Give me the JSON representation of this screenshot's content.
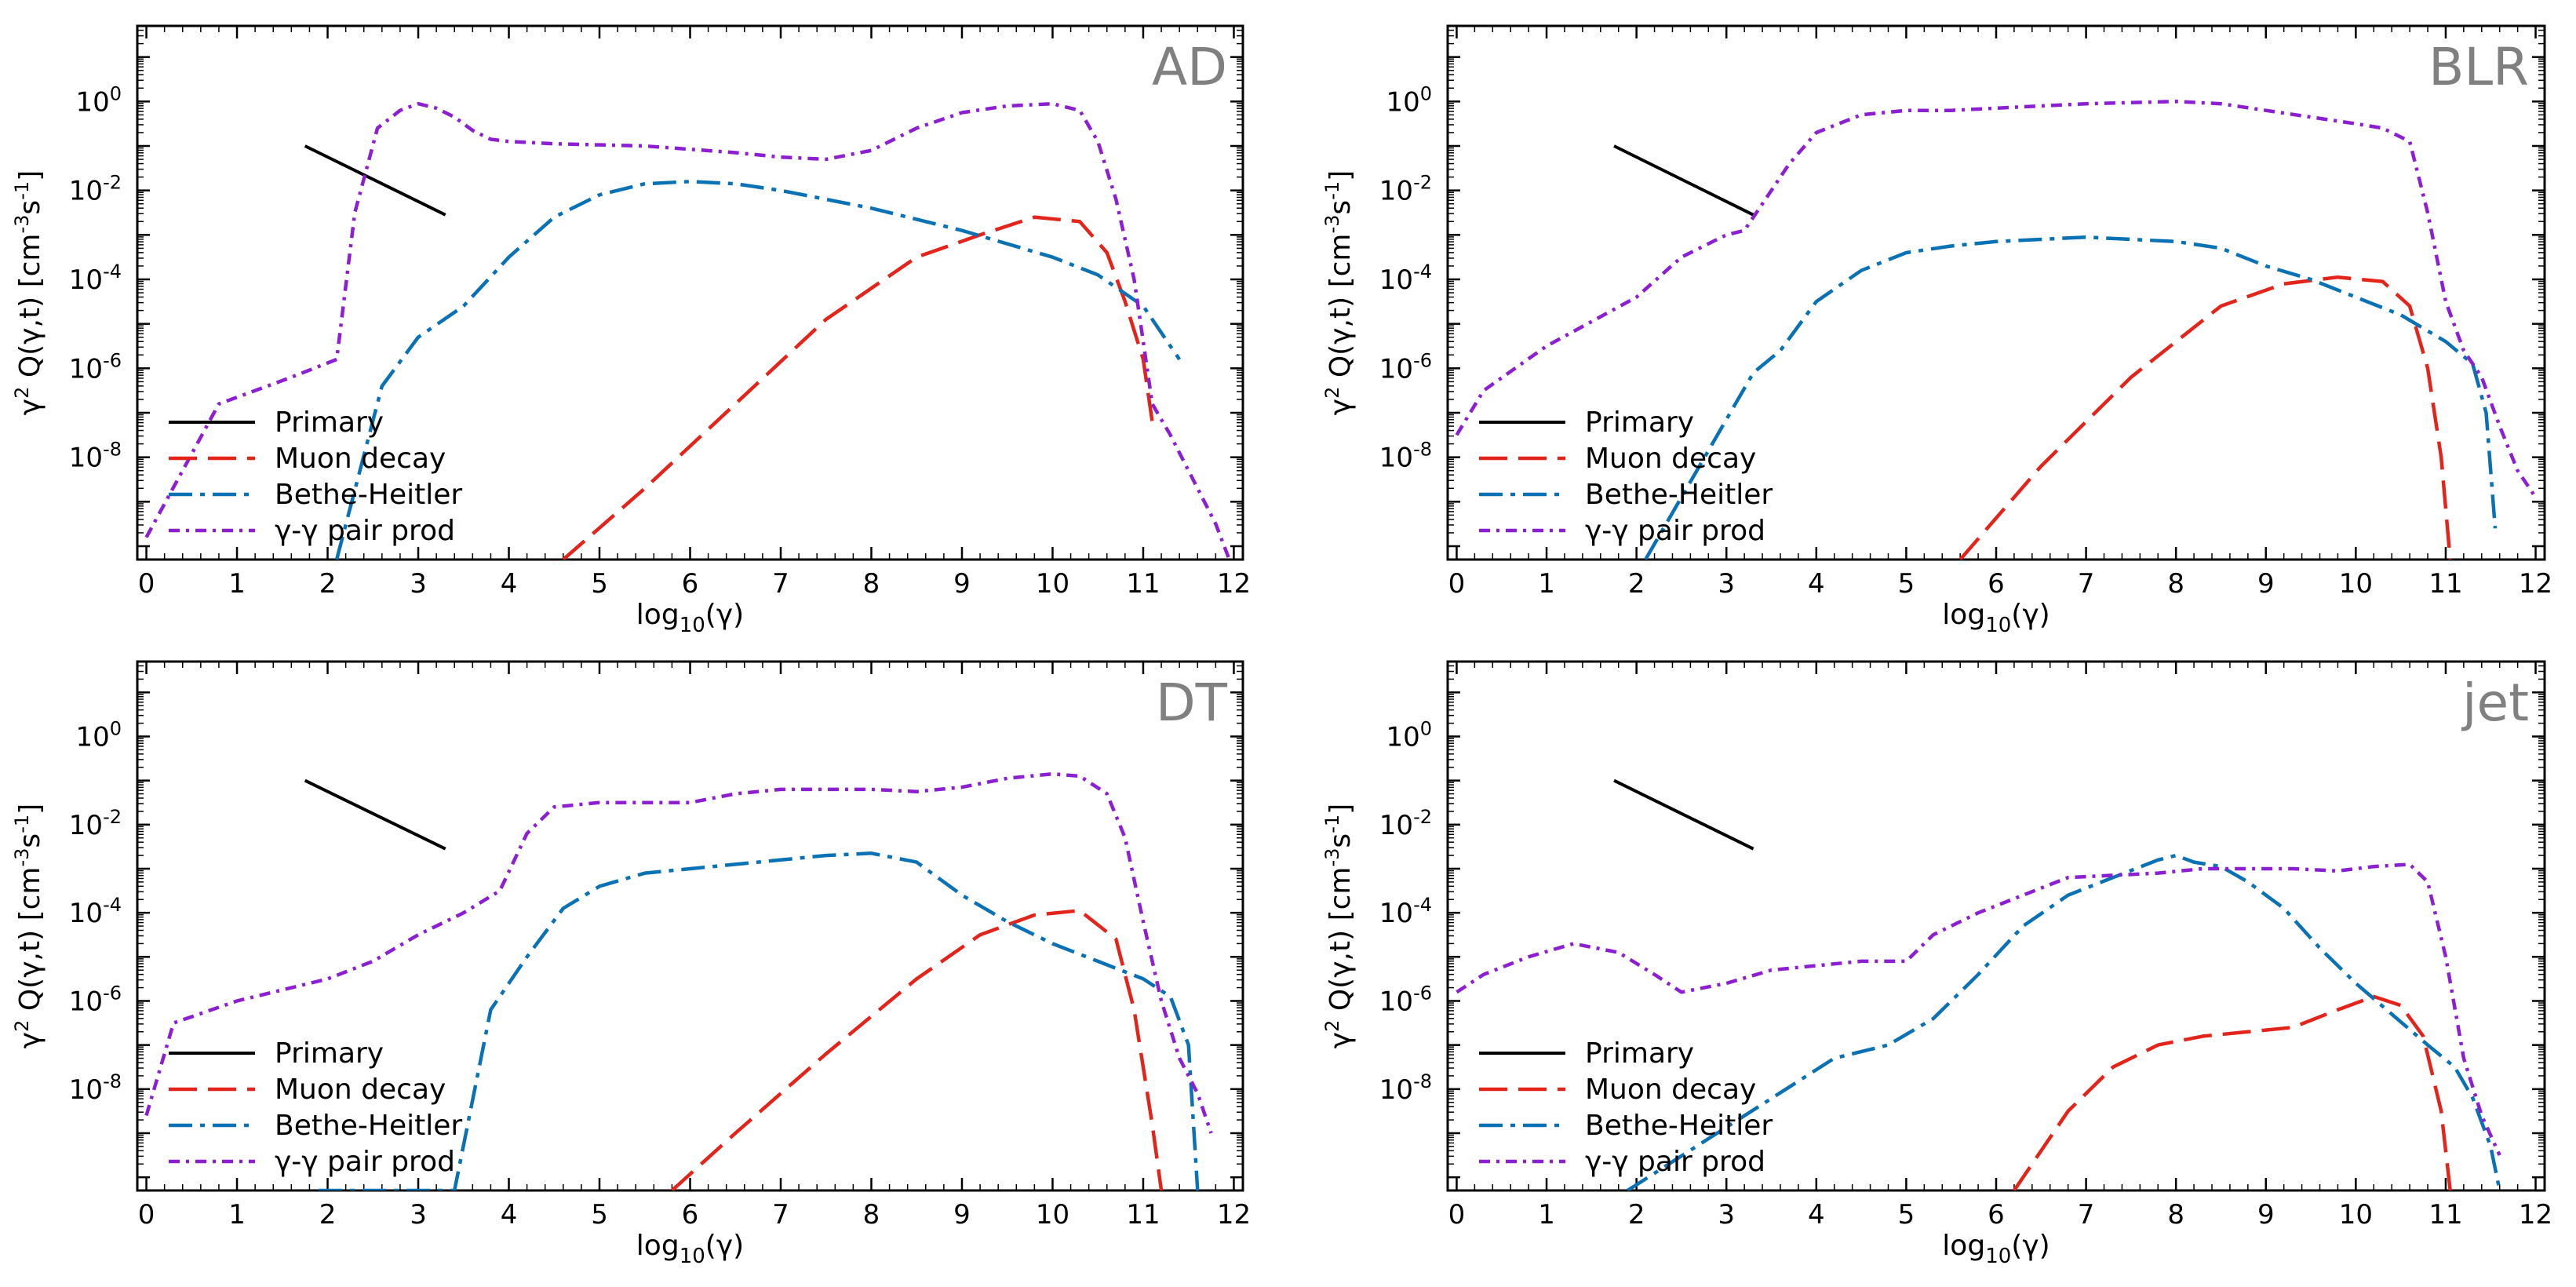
{
  "figure": {
    "xlabel_base": "log",
    "xlabel_sub": "10",
    "xlabel_arg": "(γ)",
    "ylabel_parts": [
      "γ",
      "2",
      " Q(γ,t) [cm",
      "-3",
      "s",
      "-1",
      "]"
    ]
  },
  "colors": {
    "primary": "#000000",
    "muon": "#e3241b",
    "bethe": "#0a72b4",
    "pair": "#8c1fd1",
    "title": "#808080"
  },
  "legend_labels": [
    "Primary",
    "Muon decay",
    "Bethe-Heitler",
    "γ-γ pair prod"
  ],
  "chart_data": [
    {
      "type": "line",
      "title": "AD",
      "xlim": [
        -0.1,
        12.1
      ],
      "ylim_log10": [
        -10.3,
        1.7
      ],
      "y_scale": "log",
      "xticks": [
        "0",
        "1",
        "2",
        "3",
        "4",
        "5",
        "6",
        "7",
        "8",
        "9",
        "10",
        "11",
        "12"
      ],
      "yticks": [
        {
          "exp": 0,
          "label": "10",
          "sup": "0"
        },
        {
          "exp": -2,
          "label": "10",
          "sup": "-2"
        },
        {
          "exp": -4,
          "label": "10",
          "sup": "-4"
        },
        {
          "exp": -6,
          "label": "10",
          "sup": "-6"
        },
        {
          "exp": -8,
          "label": "10",
          "sup": "-8"
        }
      ],
      "series": [
        {
          "name": "Primary",
          "x": [
            1.75,
            3.3
          ],
          "log10y": [
            -1.0,
            -2.55
          ]
        },
        {
          "name": "Muon decay",
          "x": [
            4.6,
            5.5,
            6.5,
            7.5,
            8.5,
            9.2,
            9.8,
            10.3,
            10.6,
            10.8,
            11.0,
            11.1
          ],
          "log10y": [
            -10.3,
            -8.7,
            -6.8,
            -4.9,
            -3.5,
            -3.0,
            -2.6,
            -2.7,
            -3.4,
            -4.5,
            -5.8,
            -7.2
          ]
        },
        {
          "name": "Bethe-Heitler",
          "x": [
            2.1,
            2.6,
            3.0,
            3.5,
            4.0,
            4.5,
            5.0,
            5.5,
            6.0,
            6.5,
            7.0,
            8.0,
            9.0,
            10.0,
            10.5,
            11.0,
            11.3,
            11.4
          ],
          "log10y": [
            -10.3,
            -6.4,
            -5.3,
            -4.6,
            -3.5,
            -2.6,
            -2.1,
            -1.85,
            -1.8,
            -1.85,
            -2.0,
            -2.4,
            -2.9,
            -3.5,
            -3.9,
            -4.6,
            -5.5,
            -5.8
          ]
        },
        {
          "name": "γ-γ pair prod",
          "x": [
            0.0,
            0.8,
            1.6,
            2.1,
            2.3,
            2.55,
            2.8,
            3.0,
            3.2,
            3.4,
            3.6,
            3.8,
            4.0,
            4.5,
            5.5,
            6.5,
            7.0,
            7.5,
            8.0,
            8.5,
            9.0,
            9.5,
            10.0,
            10.3,
            10.5,
            10.7,
            10.9,
            11.0,
            11.1,
            11.3,
            11.5,
            11.8,
            11.95
          ],
          "log10y": [
            -9.8,
            -6.8,
            -6.2,
            -5.8,
            -2.5,
            -0.6,
            -0.2,
            -0.05,
            -0.15,
            -0.35,
            -0.65,
            -0.85,
            -0.9,
            -0.95,
            -1.0,
            -1.15,
            -1.25,
            -1.3,
            -1.1,
            -0.6,
            -0.25,
            -0.1,
            -0.05,
            -0.2,
            -0.9,
            -2.2,
            -4.0,
            -5.4,
            -6.8,
            -7.5,
            -8.3,
            -9.5,
            -10.3
          ]
        }
      ]
    },
    {
      "type": "line",
      "title": "BLR",
      "xlim": [
        -0.1,
        12.1
      ],
      "ylim_log10": [
        -10.3,
        1.7
      ],
      "y_scale": "log",
      "xticks": [
        "0",
        "1",
        "2",
        "3",
        "4",
        "5",
        "6",
        "7",
        "8",
        "9",
        "10",
        "11",
        "12"
      ],
      "yticks": [
        {
          "exp": 0,
          "label": "10",
          "sup": "0"
        },
        {
          "exp": -2,
          "label": "10",
          "sup": "-2"
        },
        {
          "exp": -4,
          "label": "10",
          "sup": "-4"
        },
        {
          "exp": -6,
          "label": "10",
          "sup": "-6"
        },
        {
          "exp": -8,
          "label": "10",
          "sup": "-8"
        }
      ],
      "series": [
        {
          "name": "Primary",
          "x": [
            1.75,
            3.3
          ],
          "log10y": [
            -1.0,
            -2.55
          ]
        },
        {
          "name": "Muon decay",
          "x": [
            5.6,
            6.5,
            7.5,
            8.5,
            9.2,
            9.8,
            10.3,
            10.6,
            10.8,
            10.95,
            11.05
          ],
          "log10y": [
            -10.3,
            -8.2,
            -6.2,
            -4.6,
            -4.1,
            -3.95,
            -4.05,
            -4.6,
            -6.0,
            -8.0,
            -10.3
          ]
        },
        {
          "name": "Bethe-Heitler",
          "x": [
            2.1,
            3.3,
            3.6,
            4.0,
            4.5,
            5.0,
            5.5,
            6.0,
            6.5,
            7.0,
            7.5,
            8.0,
            8.5,
            9.0,
            9.5,
            10.0,
            10.5,
            11.0,
            11.3,
            11.45,
            11.55
          ],
          "log10y": [
            -10.3,
            -6.1,
            -5.6,
            -4.5,
            -3.8,
            -3.4,
            -3.25,
            -3.15,
            -3.1,
            -3.05,
            -3.1,
            -3.15,
            -3.3,
            -3.7,
            -4.0,
            -4.4,
            -4.8,
            -5.4,
            -5.9,
            -7.0,
            -9.6
          ]
        },
        {
          "name": "γ-γ pair prod",
          "x": [
            0.0,
            0.3,
            1.0,
            2.0,
            2.5,
            3.0,
            3.2,
            3.4,
            3.7,
            4.0,
            4.5,
            5.0,
            5.5,
            6.0,
            7.0,
            8.0,
            8.5,
            9.0,
            9.5,
            10.0,
            10.3,
            10.6,
            10.8,
            11.0,
            11.2,
            11.4,
            11.6,
            11.8,
            12.0
          ],
          "log10y": [
            -7.5,
            -6.5,
            -5.5,
            -4.4,
            -3.5,
            -3.0,
            -2.9,
            -2.3,
            -1.4,
            -0.7,
            -0.3,
            -0.2,
            -0.2,
            -0.15,
            -0.05,
            0.0,
            -0.05,
            -0.2,
            -0.35,
            -0.5,
            -0.6,
            -0.9,
            -2.5,
            -4.5,
            -5.6,
            -6.2,
            -7.3,
            -8.3,
            -8.9
          ]
        }
      ]
    },
    {
      "type": "line",
      "title": "DT",
      "xlim": [
        -0.1,
        12.1
      ],
      "ylim_log10": [
        -10.3,
        1.7
      ],
      "y_scale": "log",
      "xticks": [
        "0",
        "1",
        "2",
        "3",
        "4",
        "5",
        "6",
        "7",
        "8",
        "9",
        "10",
        "11",
        "12"
      ],
      "yticks": [
        {
          "exp": 0,
          "label": "10",
          "sup": "0"
        },
        {
          "exp": -2,
          "label": "10",
          "sup": "-2"
        },
        {
          "exp": -4,
          "label": "10",
          "sup": "-4"
        },
        {
          "exp": -6,
          "label": "10",
          "sup": "-6"
        },
        {
          "exp": -8,
          "label": "10",
          "sup": "-8"
        }
      ],
      "series": [
        {
          "name": "Primary",
          "x": [
            1.75,
            3.3
          ],
          "log10y": [
            -1.0,
            -2.55
          ]
        },
        {
          "name": "Muon decay",
          "x": [
            5.8,
            6.5,
            7.5,
            8.5,
            9.2,
            9.8,
            10.3,
            10.7,
            10.9,
            11.1,
            11.2
          ],
          "log10y": [
            -10.3,
            -9.0,
            -7.2,
            -5.5,
            -4.5,
            -4.05,
            -3.95,
            -4.6,
            -6.2,
            -8.8,
            -10.3
          ]
        },
        {
          "name": "Bethe-Heitler",
          "x": [
            1.9,
            2.5,
            3.0,
            3.4,
            3.8,
            4.2,
            4.6,
            5.0,
            5.5,
            6.0,
            6.5,
            7.0,
            7.5,
            8.0,
            8.5,
            9.0,
            9.5,
            10.0,
            10.5,
            11.0,
            11.3,
            11.5,
            11.6
          ],
          "log10y": [
            -10.3,
            -10.3,
            -10.3,
            -10.3,
            -6.2,
            -5.0,
            -3.9,
            -3.4,
            -3.1,
            -3.0,
            -2.9,
            -2.8,
            -2.7,
            -2.65,
            -2.85,
            -3.6,
            -4.2,
            -4.7,
            -5.1,
            -5.5,
            -5.9,
            -7.0,
            -10.3
          ]
        },
        {
          "name": "γ-γ pair prod",
          "x": [
            0.0,
            0.3,
            1.0,
            2.0,
            2.5,
            3.0,
            3.5,
            3.9,
            4.2,
            4.5,
            5.0,
            5.5,
            6.0,
            6.5,
            7.0,
            7.5,
            8.0,
            8.5,
            9.0,
            9.5,
            10.0,
            10.3,
            10.6,
            10.8,
            11.0,
            11.2,
            11.4,
            11.6,
            11.75
          ],
          "log10y": [
            -8.6,
            -6.5,
            -6.0,
            -5.5,
            -5.1,
            -4.5,
            -4.0,
            -3.5,
            -2.2,
            -1.6,
            -1.5,
            -1.5,
            -1.5,
            -1.3,
            -1.2,
            -1.2,
            -1.2,
            -1.25,
            -1.15,
            -0.95,
            -0.85,
            -0.9,
            -1.3,
            -2.3,
            -4.2,
            -6.0,
            -7.3,
            -8.1,
            -9.0
          ]
        }
      ]
    },
    {
      "type": "line",
      "title": "jet",
      "xlim": [
        -0.1,
        12.1
      ],
      "ylim_log10": [
        -10.3,
        1.7
      ],
      "y_scale": "log",
      "xticks": [
        "0",
        "1",
        "2",
        "3",
        "4",
        "5",
        "6",
        "7",
        "8",
        "9",
        "10",
        "11",
        "12"
      ],
      "yticks": [
        {
          "exp": 0,
          "label": "10",
          "sup": "0"
        },
        {
          "exp": -2,
          "label": "10",
          "sup": "-2"
        },
        {
          "exp": -4,
          "label": "10",
          "sup": "-4"
        },
        {
          "exp": -6,
          "label": "10",
          "sup": "-6"
        },
        {
          "exp": -8,
          "label": "10",
          "sup": "-8"
        }
      ],
      "series": [
        {
          "name": "Primary",
          "x": [
            1.75,
            3.3
          ],
          "log10y": [
            -1.0,
            -2.55
          ]
        },
        {
          "name": "Muon decay",
          "x": [
            6.2,
            6.8,
            7.3,
            7.8,
            8.3,
            8.8,
            9.3,
            9.8,
            10.2,
            10.5,
            10.75,
            10.95,
            11.05
          ],
          "log10y": [
            -10.3,
            -8.5,
            -7.5,
            -7.0,
            -6.8,
            -6.7,
            -6.6,
            -6.2,
            -5.9,
            -6.1,
            -6.8,
            -8.5,
            -10.3
          ]
        },
        {
          "name": "Bethe-Heitler",
          "x": [
            1.9,
            4.2,
            4.8,
            5.3,
            5.8,
            6.3,
            6.8,
            7.3,
            7.8,
            8.0,
            8.2,
            8.5,
            8.8,
            9.2,
            9.6,
            10.0,
            10.4,
            10.8,
            11.1,
            11.3,
            11.5,
            11.6
          ],
          "log10y": [
            -10.3,
            -7.3,
            -7.0,
            -6.4,
            -5.4,
            -4.3,
            -3.6,
            -3.2,
            -2.8,
            -2.7,
            -2.85,
            -2.95,
            -3.3,
            -3.9,
            -4.8,
            -5.6,
            -6.3,
            -7.0,
            -7.5,
            -8.2,
            -9.3,
            -10.3
          ]
        },
        {
          "name": "γ-γ pair prod",
          "x": [
            0.0,
            0.3,
            0.8,
            1.3,
            1.8,
            2.2,
            2.5,
            3.0,
            3.5,
            4.0,
            4.5,
            5.0,
            5.3,
            5.8,
            6.3,
            6.8,
            7.3,
            7.8,
            8.3,
            8.8,
            9.3,
            9.8,
            10.2,
            10.6,
            10.8,
            11.0,
            11.2,
            11.4,
            11.6
          ],
          "log10y": [
            -5.8,
            -5.4,
            -5.0,
            -4.7,
            -4.9,
            -5.4,
            -5.8,
            -5.6,
            -5.3,
            -5.2,
            -5.1,
            -5.1,
            -4.5,
            -4.0,
            -3.6,
            -3.2,
            -3.15,
            -3.1,
            -3.0,
            -3.0,
            -3.0,
            -3.05,
            -2.95,
            -2.9,
            -3.3,
            -5.0,
            -7.3,
            -8.6,
            -9.5
          ]
        }
      ]
    }
  ]
}
